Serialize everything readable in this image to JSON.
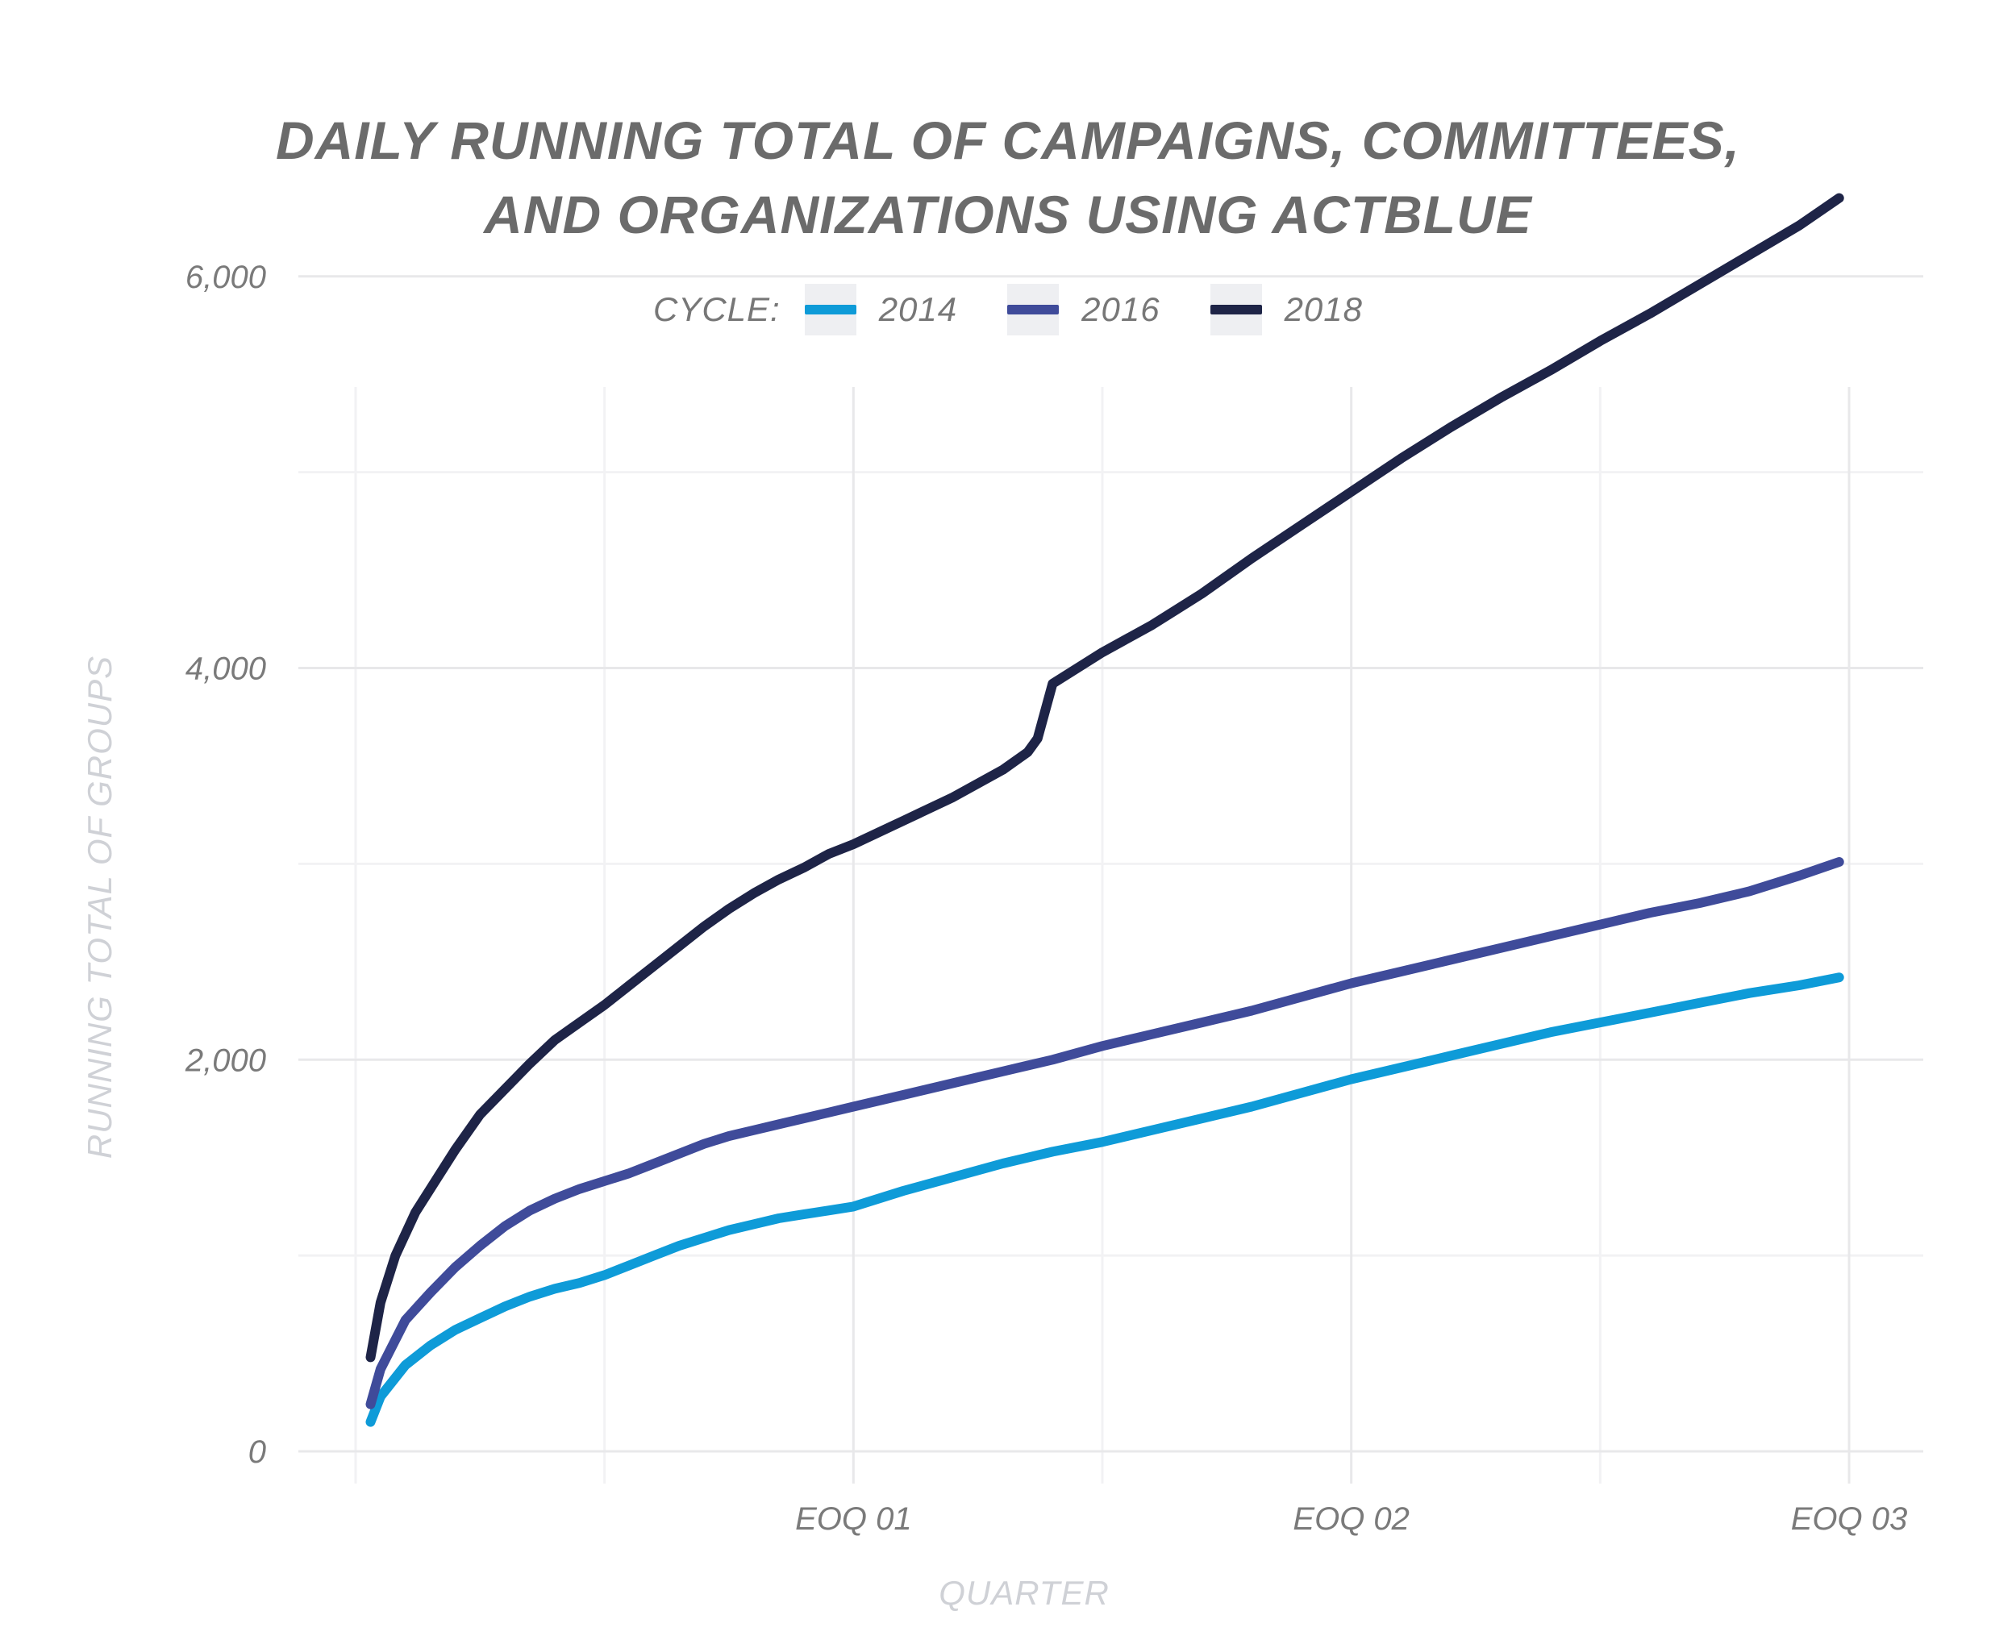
{
  "chart_data": {
    "type": "line",
    "title_lines": [
      "DAILY RUNNING TOTAL OF CAMPAIGNS, COMMITTEES,",
      "AND ORGANIZATIONS USING ACTBLUE"
    ],
    "legend_label": "CYCLE:",
    "xlabel": "QUARTER",
    "ylabel": "RUNNING TOTAL OF GROUPS",
    "x_range": [
      -0.05,
      3.1
    ],
    "x_ticks": [
      {
        "value": 1,
        "label": "EOQ 01"
      },
      {
        "value": 2,
        "label": "EOQ 02"
      },
      {
        "value": 3,
        "label": "EOQ 03"
      }
    ],
    "x_minor_gridlines": [
      0,
      0.5,
      1.5,
      2.5
    ],
    "ylim": [
      0,
      6500
    ],
    "y_ticks": [
      {
        "value": 0,
        "label": "0"
      },
      {
        "value": 2000,
        "label": "2,000"
      },
      {
        "value": 4000,
        "label": "4,000"
      },
      {
        "value": 6000,
        "label": "6,000"
      }
    ],
    "y_minor_gridlines": [
      1000,
      3000,
      5000
    ],
    "grid": true,
    "legend_position": "top-center",
    "series": [
      {
        "name": "2014",
        "color": "#0e9bd8",
        "x": [
          0.03,
          0.05,
          0.1,
          0.15,
          0.2,
          0.25,
          0.3,
          0.35,
          0.4,
          0.45,
          0.5,
          0.55,
          0.6,
          0.65,
          0.7,
          0.75,
          0.8,
          0.85,
          0.9,
          0.95,
          1.0,
          1.1,
          1.2,
          1.3,
          1.4,
          1.5,
          1.6,
          1.7,
          1.8,
          1.9,
          2.0,
          2.1,
          2.2,
          2.3,
          2.4,
          2.5,
          2.6,
          2.7,
          2.8,
          2.9,
          2.98
        ],
        "y": [
          150,
          280,
          440,
          540,
          620,
          680,
          740,
          790,
          830,
          860,
          900,
          950,
          1000,
          1050,
          1090,
          1130,
          1160,
          1190,
          1210,
          1230,
          1250,
          1330,
          1400,
          1470,
          1530,
          1580,
          1640,
          1700,
          1760,
          1830,
          1900,
          1960,
          2020,
          2080,
          2140,
          2190,
          2240,
          2290,
          2340,
          2380,
          2420
        ]
      },
      {
        "name": "2016",
        "color": "#3f4b9a",
        "x": [
          0.03,
          0.05,
          0.1,
          0.15,
          0.2,
          0.25,
          0.3,
          0.35,
          0.4,
          0.45,
          0.5,
          0.55,
          0.6,
          0.65,
          0.7,
          0.75,
          0.8,
          0.85,
          0.9,
          0.95,
          1.0,
          1.1,
          1.2,
          1.3,
          1.4,
          1.5,
          1.6,
          1.7,
          1.8,
          1.9,
          2.0,
          2.1,
          2.2,
          2.3,
          2.4,
          2.5,
          2.6,
          2.7,
          2.8,
          2.9,
          2.98
        ],
        "y": [
          240,
          420,
          670,
          810,
          940,
          1050,
          1150,
          1230,
          1290,
          1340,
          1380,
          1420,
          1470,
          1520,
          1570,
          1610,
          1640,
          1670,
          1700,
          1730,
          1760,
          1820,
          1880,
          1940,
          2000,
          2070,
          2130,
          2190,
          2250,
          2320,
          2390,
          2450,
          2510,
          2570,
          2630,
          2690,
          2750,
          2800,
          2860,
          2940,
          3010
        ]
      },
      {
        "name": "2018",
        "color": "#1e2447",
        "x": [
          0.03,
          0.05,
          0.08,
          0.12,
          0.16,
          0.2,
          0.25,
          0.3,
          0.35,
          0.4,
          0.45,
          0.5,
          0.55,
          0.6,
          0.65,
          0.7,
          0.75,
          0.8,
          0.85,
          0.9,
          0.95,
          1.0,
          1.1,
          1.2,
          1.3,
          1.35,
          1.37,
          1.4,
          1.5,
          1.6,
          1.7,
          1.8,
          1.9,
          2.0,
          2.1,
          2.2,
          2.3,
          2.4,
          2.5,
          2.6,
          2.7,
          2.8,
          2.9,
          2.98
        ],
        "y": [
          480,
          760,
          1000,
          1220,
          1380,
          1540,
          1720,
          1850,
          1980,
          2100,
          2190,
          2280,
          2380,
          2480,
          2580,
          2680,
          2770,
          2850,
          2920,
          2980,
          3050,
          3100,
          3220,
          3340,
          3480,
          3570,
          3640,
          3920,
          4080,
          4220,
          4380,
          4560,
          4730,
          4900,
          5070,
          5230,
          5380,
          5520,
          5670,
          5810,
          5960,
          6110,
          6260,
          6400
        ]
      }
    ]
  }
}
